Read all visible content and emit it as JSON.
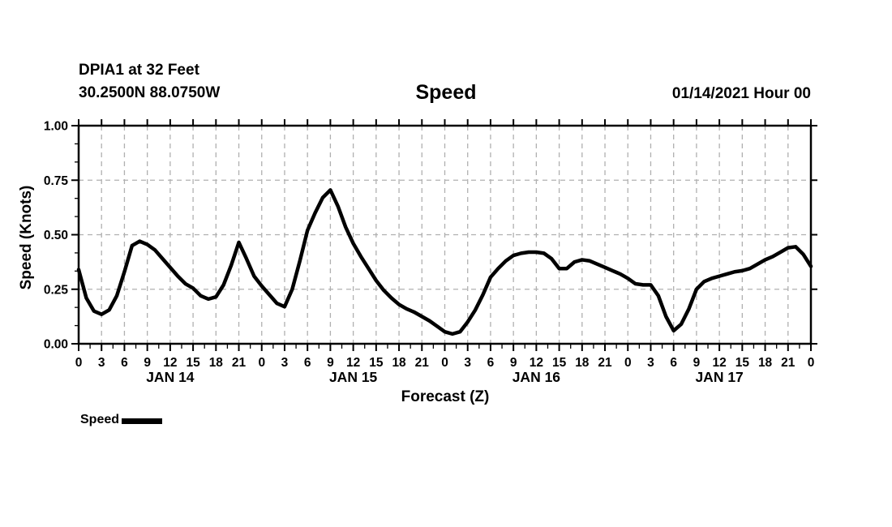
{
  "header": {
    "station_name": "DPIA1 at 32 Feet",
    "station_coords": "30.2500N 88.0750W",
    "title": "Speed",
    "run_datetime": "01/14/2021 Hour 00"
  },
  "legend": {
    "label": "Speed"
  },
  "chart_data": {
    "type": "line",
    "title": "Speed",
    "xlabel": "Forecast (Z)",
    "ylabel": "Speed (Knots)",
    "ylim": [
      0.0,
      1.0
    ],
    "yticks": [
      0.0,
      0.25,
      0.5,
      0.75,
      1.0
    ],
    "ytick_labels": [
      "0.00",
      "0.25",
      "0.50",
      "0.75",
      "1.00"
    ],
    "x_range_hours": [
      0,
      96
    ],
    "xtick_interval_hours": 3,
    "xtick_labels_cycle": [
      "0",
      "3",
      "6",
      "9",
      "12",
      "15",
      "18",
      "21"
    ],
    "day_labels": [
      "JAN 14",
      "JAN 15",
      "JAN 16",
      "JAN 17"
    ],
    "grid": true,
    "grid_color": "#b0b0b0",
    "line_color": "#000000",
    "legend_position": "bottom-left",
    "series": [
      {
        "name": "Speed",
        "x_start_hour": 0,
        "x_step_hours": 1,
        "values": [
          0.34,
          0.21,
          0.15,
          0.135,
          0.155,
          0.22,
          0.33,
          0.45,
          0.47,
          0.455,
          0.43,
          0.39,
          0.35,
          0.31,
          0.275,
          0.255,
          0.22,
          0.205,
          0.215,
          0.27,
          0.36,
          0.465,
          0.39,
          0.31,
          0.265,
          0.225,
          0.185,
          0.17,
          0.25,
          0.38,
          0.52,
          0.6,
          0.67,
          0.705,
          0.63,
          0.535,
          0.46,
          0.4,
          0.345,
          0.29,
          0.245,
          0.21,
          0.18,
          0.16,
          0.145,
          0.125,
          0.105,
          0.08,
          0.055,
          0.045,
          0.055,
          0.1,
          0.155,
          0.225,
          0.305,
          0.345,
          0.38,
          0.405,
          0.415,
          0.42,
          0.42,
          0.415,
          0.39,
          0.345,
          0.345,
          0.375,
          0.385,
          0.38,
          0.365,
          0.35,
          0.335,
          0.32,
          0.3,
          0.275,
          0.27,
          0.27,
          0.22,
          0.125,
          0.06,
          0.09,
          0.16,
          0.25,
          0.285,
          0.3,
          0.31,
          0.32,
          0.33,
          0.335,
          0.345,
          0.365,
          0.385,
          0.4,
          0.42,
          0.44,
          0.445,
          0.41,
          0.355
        ]
      }
    ]
  }
}
